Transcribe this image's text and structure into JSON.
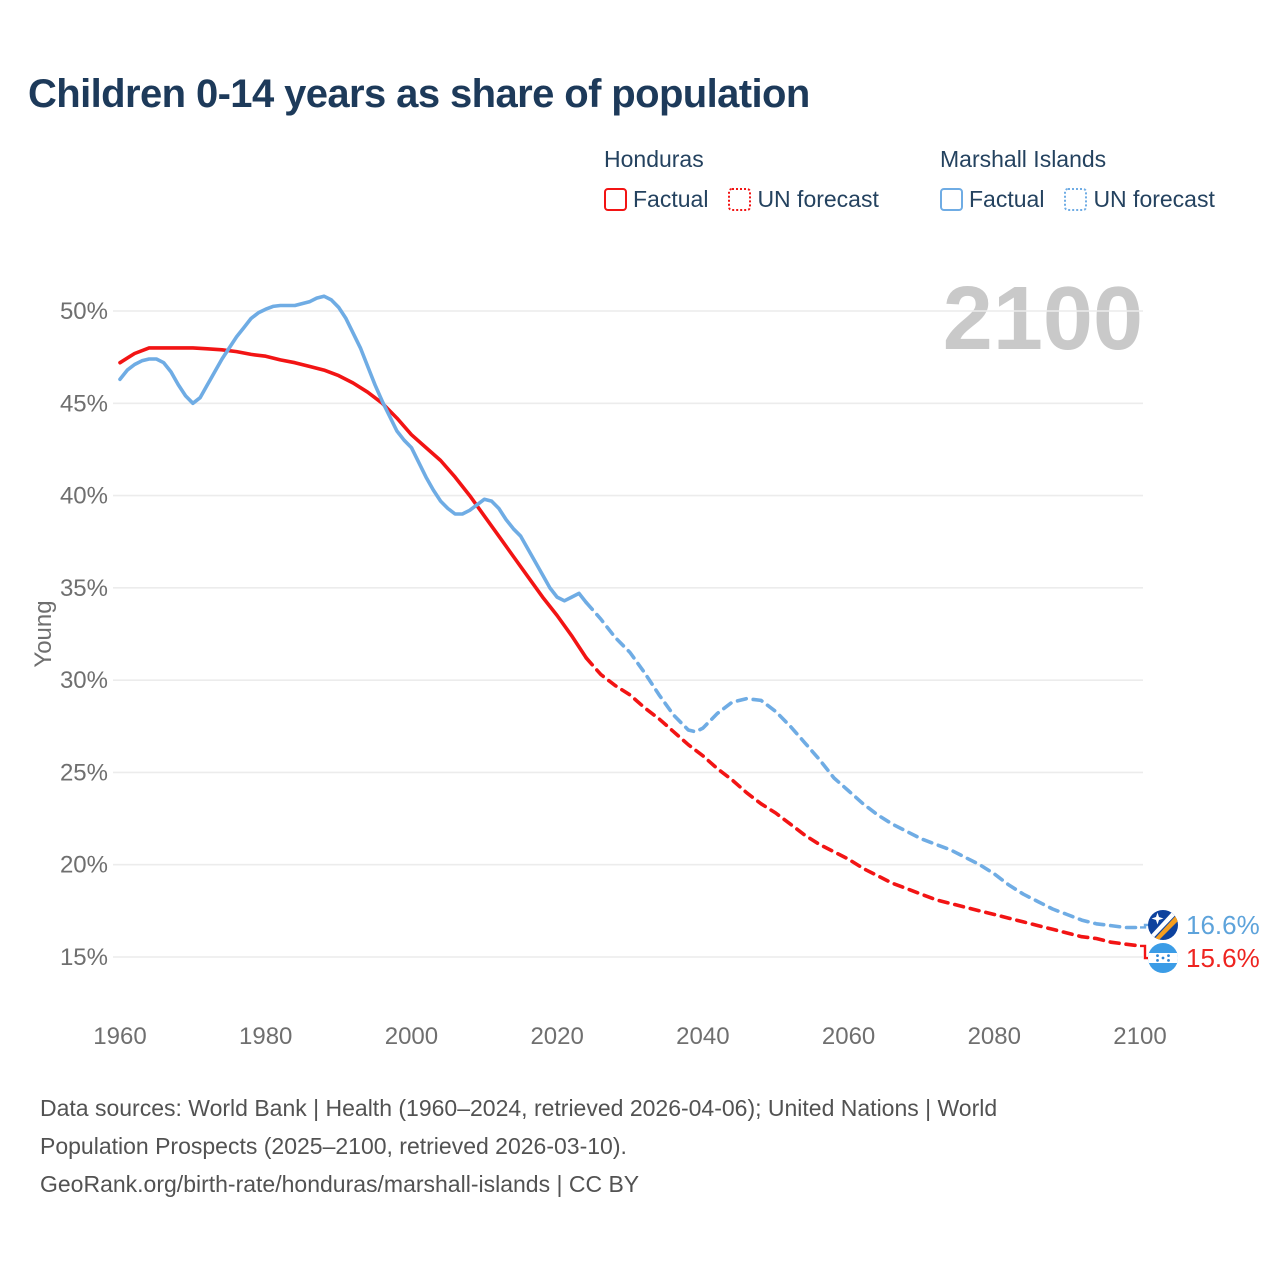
{
  "legend": {
    "groups": [
      {
        "name": "Honduras",
        "items": [
          {
            "label": "Factual",
            "style": "solid"
          },
          {
            "label": "UN forecast",
            "style": "dotted"
          }
        ]
      },
      {
        "name": "Marshall Islands",
        "items": [
          {
            "label": "Factual",
            "style": "solid"
          },
          {
            "label": "UN forecast",
            "style": "dotted"
          }
        ]
      }
    ]
  },
  "chart_data": {
    "type": "line",
    "title": "Children 0-14 years as share of population",
    "ylabel": "Young",
    "xlabel": "",
    "watermark_year": "2100",
    "x_ticks": [
      1960,
      1980,
      2000,
      2020,
      2040,
      2060,
      2080,
      2100
    ],
    "y_ticks": [
      50,
      45,
      40,
      35,
      30,
      25,
      20,
      15
    ],
    "y_tick_suffix": "%",
    "xlim": [
      1960,
      2100
    ],
    "ylim": [
      15,
      50
    ],
    "grid": "horizontal",
    "legend_position": "top-right",
    "colors": {
      "honduras": "#f21414",
      "marshall_islands": "#6face4",
      "honduras_label": "#ee2420",
      "marshall_islands_label": "#5da3db",
      "grid": "#ececec",
      "watermark": "#c9c9c9"
    },
    "series": [
      {
        "name": "Honduras Factual",
        "color": "#f21414",
        "dashed": false,
        "points": [
          [
            1960,
            47.2
          ],
          [
            1962,
            47.7
          ],
          [
            1964,
            48.0
          ],
          [
            1967,
            48.0
          ],
          [
            1970,
            48.0
          ],
          [
            1972,
            47.95
          ],
          [
            1974,
            47.9
          ],
          [
            1976,
            47.8
          ],
          [
            1978,
            47.65
          ],
          [
            1980,
            47.55
          ],
          [
            1982,
            47.35
          ],
          [
            1984,
            47.2
          ],
          [
            1986,
            47.0
          ],
          [
            1988,
            46.8
          ],
          [
            1990,
            46.5
          ],
          [
            1992,
            46.1
          ],
          [
            1994,
            45.6
          ],
          [
            1996,
            45.0
          ],
          [
            1998,
            44.2
          ],
          [
            2000,
            43.3
          ],
          [
            2002,
            42.6
          ],
          [
            2004,
            41.9
          ],
          [
            2006,
            41.0
          ],
          [
            2008,
            40.0
          ],
          [
            2010,
            38.9
          ],
          [
            2012,
            37.8
          ],
          [
            2014,
            36.7
          ],
          [
            2016,
            35.6
          ],
          [
            2018,
            34.5
          ],
          [
            2020,
            33.5
          ],
          [
            2022,
            32.4
          ],
          [
            2024,
            31.2
          ]
        ]
      },
      {
        "name": "Honduras UN forecast",
        "color": "#f21414",
        "dashed": true,
        "end_label": "15.6%",
        "points": [
          [
            2024,
            31.2
          ],
          [
            2026,
            30.3
          ],
          [
            2028,
            29.7
          ],
          [
            2030,
            29.2
          ],
          [
            2032,
            28.5
          ],
          [
            2034,
            27.9
          ],
          [
            2036,
            27.2
          ],
          [
            2038,
            26.5
          ],
          [
            2040,
            25.9
          ],
          [
            2042,
            25.2
          ],
          [
            2044,
            24.6
          ],
          [
            2046,
            23.9
          ],
          [
            2048,
            23.3
          ],
          [
            2050,
            22.8
          ],
          [
            2052,
            22.2
          ],
          [
            2054,
            21.6
          ],
          [
            2056,
            21.1
          ],
          [
            2058,
            20.7
          ],
          [
            2060,
            20.3
          ],
          [
            2062,
            19.8
          ],
          [
            2064,
            19.4
          ],
          [
            2066,
            19.0
          ],
          [
            2068,
            18.7
          ],
          [
            2070,
            18.4
          ],
          [
            2072,
            18.1
          ],
          [
            2074,
            17.9
          ],
          [
            2076,
            17.7
          ],
          [
            2078,
            17.5
          ],
          [
            2080,
            17.3
          ],
          [
            2082,
            17.1
          ],
          [
            2084,
            16.9
          ],
          [
            2086,
            16.7
          ],
          [
            2088,
            16.5
          ],
          [
            2090,
            16.3
          ],
          [
            2092,
            16.1
          ],
          [
            2094,
            16.0
          ],
          [
            2096,
            15.8
          ],
          [
            2098,
            15.7
          ],
          [
            2100,
            15.6
          ]
        ]
      },
      {
        "name": "Marshall Islands Factual",
        "color": "#6face4",
        "dashed": false,
        "points": [
          [
            1960,
            46.3
          ],
          [
            1961,
            46.8
          ],
          [
            1962,
            47.1
          ],
          [
            1963,
            47.3
          ],
          [
            1964,
            47.4
          ],
          [
            1965,
            47.4
          ],
          [
            1966,
            47.2
          ],
          [
            1967,
            46.7
          ],
          [
            1968,
            46.0
          ],
          [
            1969,
            45.4
          ],
          [
            1970,
            45.0
          ],
          [
            1971,
            45.3
          ],
          [
            1972,
            46.0
          ],
          [
            1973,
            46.7
          ],
          [
            1974,
            47.4
          ],
          [
            1975,
            48.0
          ],
          [
            1976,
            48.6
          ],
          [
            1977,
            49.1
          ],
          [
            1978,
            49.6
          ],
          [
            1979,
            49.9
          ],
          [
            1980,
            50.1
          ],
          [
            1981,
            50.25
          ],
          [
            1982,
            50.3
          ],
          [
            1984,
            50.3
          ],
          [
            1985,
            50.4
          ],
          [
            1986,
            50.5
          ],
          [
            1987,
            50.7
          ],
          [
            1988,
            50.8
          ],
          [
            1989,
            50.6
          ],
          [
            1990,
            50.2
          ],
          [
            1991,
            49.6
          ],
          [
            1992,
            48.8
          ],
          [
            1993,
            48.0
          ],
          [
            1994,
            47.0
          ],
          [
            1995,
            46.0
          ],
          [
            1996,
            45.1
          ],
          [
            1997,
            44.3
          ],
          [
            1998,
            43.5
          ],
          [
            1999,
            43.0
          ],
          [
            2000,
            42.6
          ],
          [
            2001,
            41.8
          ],
          [
            2002,
            41.0
          ],
          [
            2003,
            40.3
          ],
          [
            2004,
            39.7
          ],
          [
            2005,
            39.3
          ],
          [
            2006,
            39.0
          ],
          [
            2007,
            39.0
          ],
          [
            2008,
            39.2
          ],
          [
            2009,
            39.5
          ],
          [
            2010,
            39.8
          ],
          [
            2011,
            39.7
          ],
          [
            2012,
            39.3
          ],
          [
            2013,
            38.7
          ],
          [
            2014,
            38.2
          ],
          [
            2015,
            37.8
          ],
          [
            2016,
            37.1
          ],
          [
            2017,
            36.4
          ],
          [
            2018,
            35.7
          ],
          [
            2019,
            35.0
          ],
          [
            2020,
            34.5
          ],
          [
            2021,
            34.3
          ],
          [
            2022,
            34.5
          ],
          [
            2023,
            34.7
          ],
          [
            2024,
            34.2
          ]
        ]
      },
      {
        "name": "Marshall Islands UN forecast",
        "color": "#6face4",
        "dashed": true,
        "end_label": "16.6%",
        "points": [
          [
            2024,
            34.2
          ],
          [
            2026,
            33.3
          ],
          [
            2028,
            32.3
          ],
          [
            2030,
            31.5
          ],
          [
            2032,
            30.4
          ],
          [
            2034,
            29.2
          ],
          [
            2036,
            28.1
          ],
          [
            2038,
            27.3
          ],
          [
            2039,
            27.2
          ],
          [
            2040,
            27.4
          ],
          [
            2042,
            28.2
          ],
          [
            2044,
            28.8
          ],
          [
            2046,
            29.0
          ],
          [
            2048,
            28.9
          ],
          [
            2050,
            28.3
          ],
          [
            2052,
            27.5
          ],
          [
            2054,
            26.6
          ],
          [
            2056,
            25.7
          ],
          [
            2058,
            24.7
          ],
          [
            2060,
            24.0
          ],
          [
            2062,
            23.3
          ],
          [
            2064,
            22.7
          ],
          [
            2066,
            22.2
          ],
          [
            2068,
            21.8
          ],
          [
            2070,
            21.4
          ],
          [
            2072,
            21.1
          ],
          [
            2074,
            20.8
          ],
          [
            2076,
            20.4
          ],
          [
            2078,
            20.0
          ],
          [
            2080,
            19.5
          ],
          [
            2082,
            18.9
          ],
          [
            2084,
            18.4
          ],
          [
            2086,
            18.0
          ],
          [
            2088,
            17.6
          ],
          [
            2090,
            17.3
          ],
          [
            2092,
            17.0
          ],
          [
            2094,
            16.8
          ],
          [
            2096,
            16.7
          ],
          [
            2098,
            16.6
          ],
          [
            2100,
            16.6
          ]
        ]
      }
    ],
    "end_labels": [
      {
        "country": "Marshall Islands",
        "value": "16.6%",
        "color": "#5da3db",
        "flag": "marshall-islands-flag"
      },
      {
        "country": "Honduras",
        "value": "15.6%",
        "color": "#ee2420",
        "flag": "honduras-flag"
      }
    ]
  },
  "footer": {
    "line1": "Data sources: World Bank | Health (1960–2024, retrieved 2026-04-06); United Nations | World",
    "line2": "Population Prospects (2025–2100, retrieved 2026-03-10).",
    "line3": "GeoRank.org/birth-rate/honduras/marshall-islands | CC BY"
  }
}
